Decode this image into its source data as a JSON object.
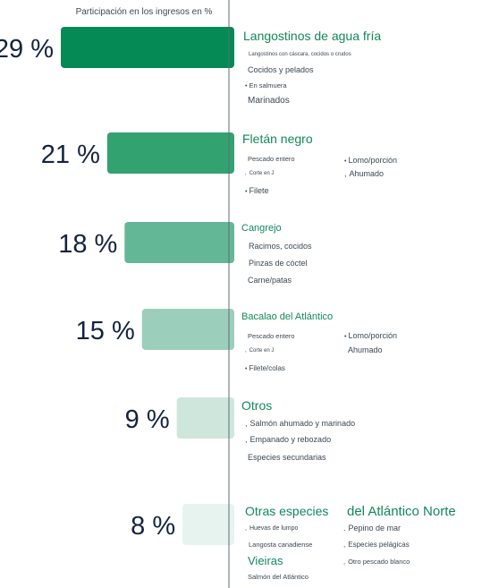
{
  "chart_data": {
    "type": "bar",
    "orientation": "horizontal",
    "axis_title": "Participación en los ingresos en %",
    "categories": [
      "Langostinos de agua fría",
      "Fletán negro",
      "Cangrejo",
      "Bacalao del Atlántico",
      "Otros",
      "Otras especies del Atlántico Norte"
    ],
    "values": [
      29,
      21,
      18,
      15,
      9,
      8
    ],
    "labels": [
      "29 %",
      "21 %",
      "18 %",
      "15 %",
      "9 %",
      "8 %"
    ],
    "colors": [
      "#068a55",
      "#33a271",
      "#63b797",
      "#9ccfbb",
      "#cfe6dc",
      "#e6f3ee"
    ],
    "xlim": [
      0,
      29
    ]
  },
  "groups": [
    {
      "title": "Langostinos de agua fría",
      "items": [
        {
          "text": "Langostinos con cáscara, cocidos o crudos"
        },
        {
          "text": "Cocidos y pelados"
        },
        {
          "text": "En salmuera"
        },
        {
          "text": "Marinados"
        }
      ]
    },
    {
      "title": "Fletán negro",
      "items": [
        {
          "text": "Pescado entero"
        },
        {
          "text": "Lomo/porción"
        },
        {
          "text": "Corte en J"
        },
        {
          "text": "Ahumado"
        },
        {
          "text": "Filete"
        }
      ]
    },
    {
      "title": "Cangrejo",
      "items": [
        {
          "text": "Racimos, cocidos"
        },
        {
          "text": "Pinzas de cóctel"
        },
        {
          "text": "Carne/patas"
        }
      ]
    },
    {
      "title": "Bacalao del Atlántico",
      "items": [
        {
          "text": "Pescado entero"
        },
        {
          "text": "Lomo/porción"
        },
        {
          "text": "Corte en J"
        },
        {
          "text": "Ahumado"
        },
        {
          "text": "Filete/colas"
        }
      ]
    },
    {
      "title": "Otros",
      "items": [
        {
          "text": "Salmón ahumado y marinado"
        },
        {
          "text": "Empanado y rebozado"
        },
        {
          "text": "Especies secundarias"
        }
      ]
    },
    {
      "title_part1": "Otras especies",
      "title_part2": "del Atlántico Norte",
      "items": [
        {
          "text": "Huevas de lumpo"
        },
        {
          "text": "Pepino de mar"
        },
        {
          "text": "Langosta canadiense"
        },
        {
          "text": "Especies pelágicas"
        },
        {
          "text": "Vieiras"
        },
        {
          "text": "Otro pescado blanco"
        },
        {
          "text": "Salmón del Atlántico"
        }
      ]
    }
  ]
}
